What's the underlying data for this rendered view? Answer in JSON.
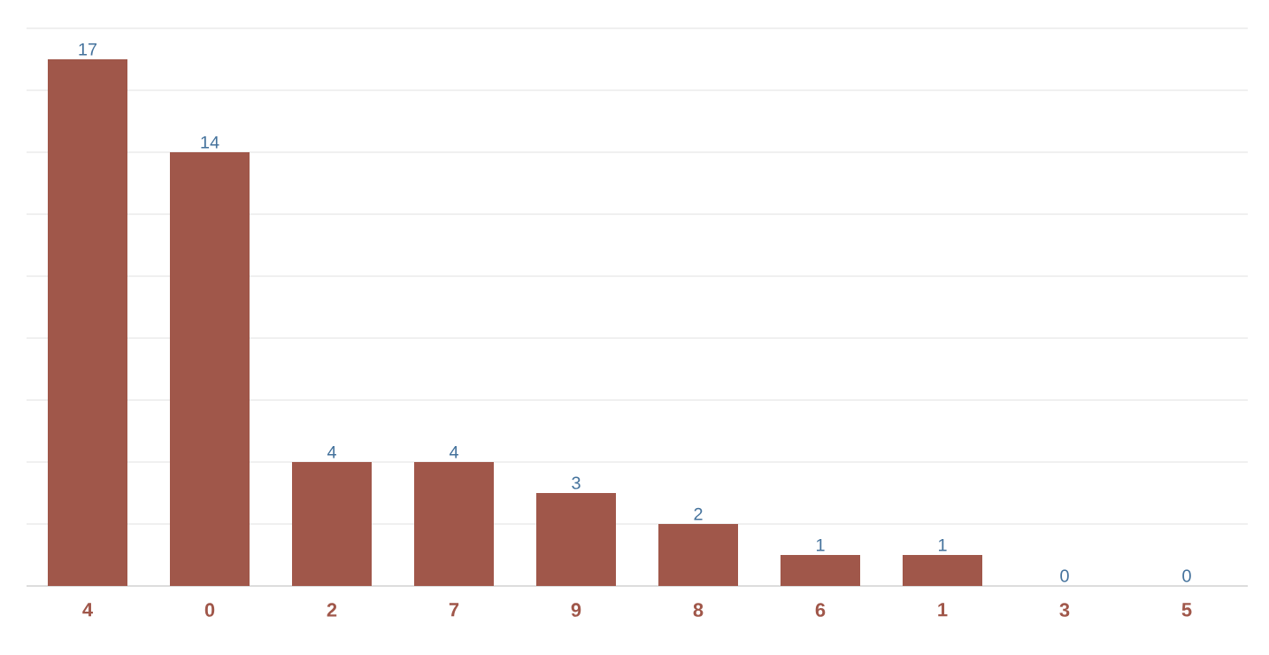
{
  "chart_data": {
    "type": "bar",
    "categories": [
      "4",
      "0",
      "2",
      "7",
      "9",
      "8",
      "6",
      "1",
      "3",
      "5"
    ],
    "values": [
      17,
      14,
      4,
      4,
      3,
      2,
      1,
      1,
      0,
      0
    ],
    "color": "#a0574a",
    "ylim": [
      0,
      18
    ],
    "yticks": [
      {
        "value": 0,
        "label": null
      },
      {
        "value": 2,
        "label": null
      },
      {
        "value": 4,
        "label": null
      },
      {
        "value": 6,
        "label": null
      },
      {
        "value": 8,
        "label": null
      },
      {
        "value": 10,
        "label": null
      },
      {
        "value": 12,
        "label": null
      },
      {
        "value": 14,
        "label": null
      },
      {
        "value": 16,
        "label": null
      },
      {
        "value": 18,
        "label": null
      }
    ],
    "tick_labels": "x",
    "grid": "y",
    "data_labels": true
  }
}
